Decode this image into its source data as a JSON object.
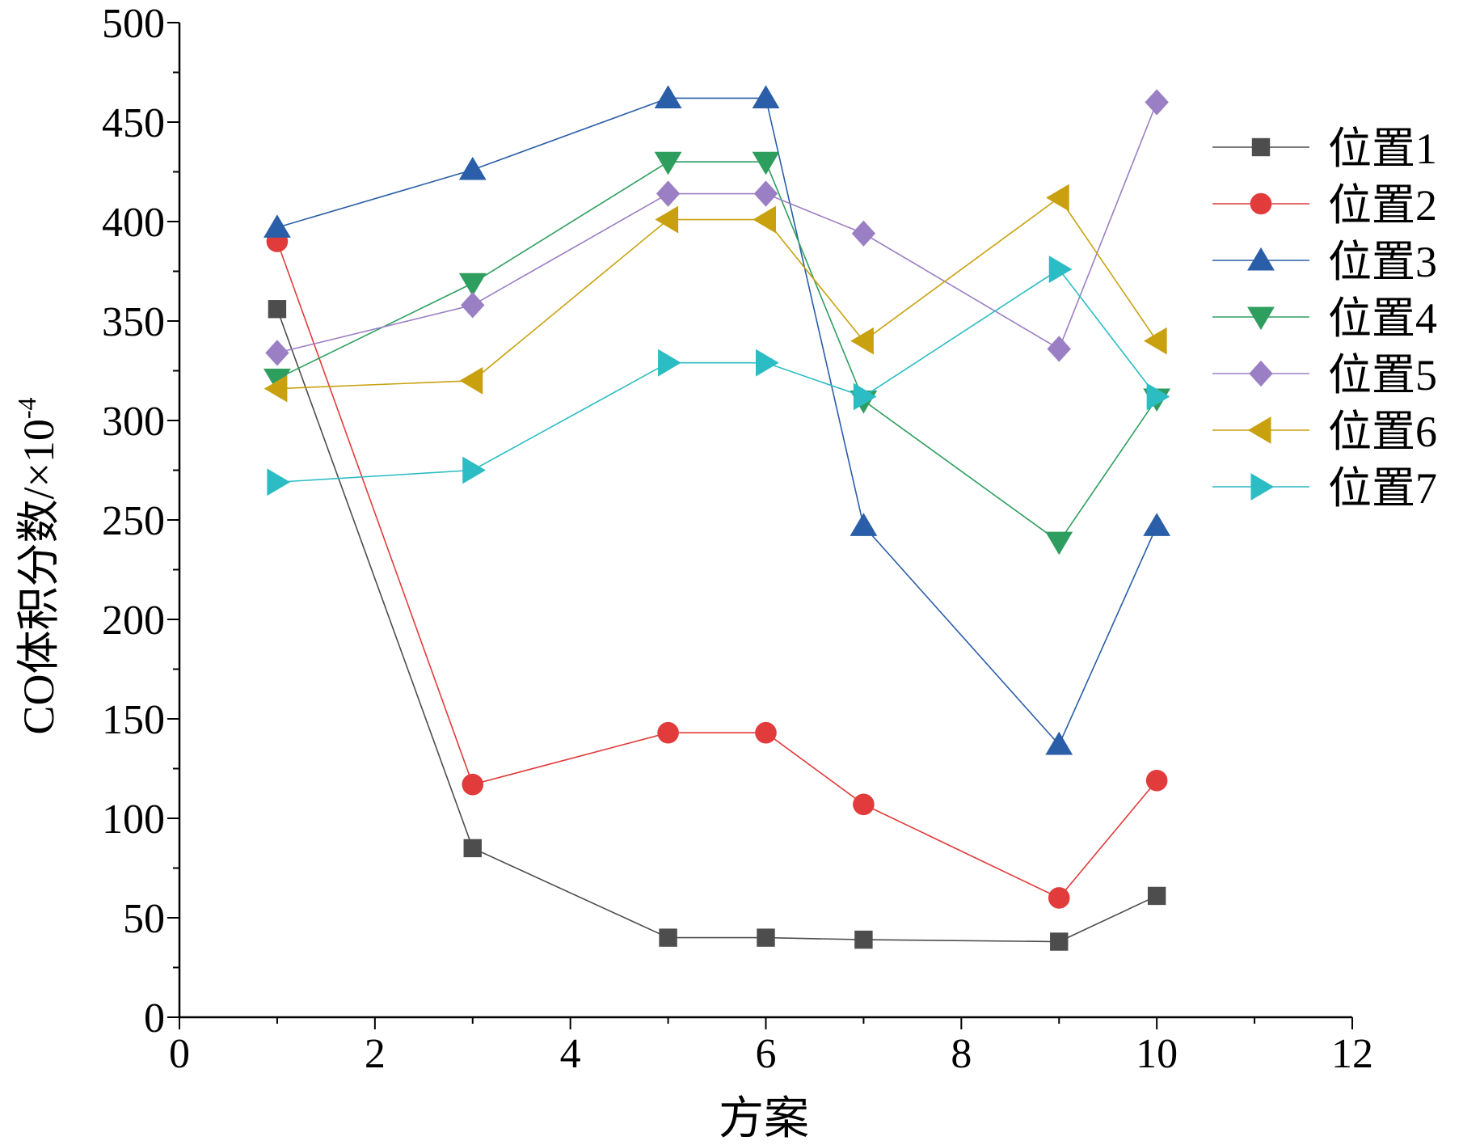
{
  "chart_data": {
    "type": "line",
    "title": "",
    "xlabel": "方案",
    "ylabel_main": "CO体积分数/×10",
    "ylabel_sup": "-4",
    "xlim": [
      0,
      12
    ],
    "ylim": [
      0,
      500
    ],
    "xticks": [
      0,
      2,
      4,
      6,
      8,
      10,
      12
    ],
    "yticks": [
      0,
      50,
      100,
      150,
      200,
      250,
      300,
      350,
      400,
      450,
      500
    ],
    "grid": false,
    "legend_position": "top-right",
    "x": [
      1,
      3,
      5,
      6,
      7,
      9,
      10
    ],
    "series": [
      {
        "name": "位置1",
        "marker": "square",
        "color": "#4d4d4d",
        "values": [
          356,
          85,
          40,
          40,
          39,
          38,
          61
        ]
      },
      {
        "name": "位置2",
        "marker": "circle",
        "color": "#e23b3b",
        "values": [
          390,
          117,
          143,
          143,
          107,
          60,
          119
        ]
      },
      {
        "name": "位置3",
        "marker": "triangle-up",
        "color": "#2a5ea8",
        "values": [
          397,
          426,
          462,
          462,
          247,
          137,
          247
        ]
      },
      {
        "name": "位置4",
        "marker": "triangle-down",
        "color": "#2e9e5f",
        "values": [
          321,
          369,
          430,
          430,
          310,
          239,
          311
        ]
      },
      {
        "name": "位置5",
        "marker": "diamond",
        "color": "#9b7fc4",
        "values": [
          334,
          358,
          414,
          414,
          394,
          336,
          460
        ]
      },
      {
        "name": "位置6",
        "marker": "triangle-left",
        "color": "#c9a10f",
        "values": [
          316,
          320,
          401,
          401,
          340,
          412,
          340
        ]
      },
      {
        "name": "位置7",
        "marker": "triangle-right",
        "color": "#2bbcc4",
        "values": [
          269,
          275,
          329,
          329,
          312,
          376,
          312
        ]
      }
    ]
  }
}
